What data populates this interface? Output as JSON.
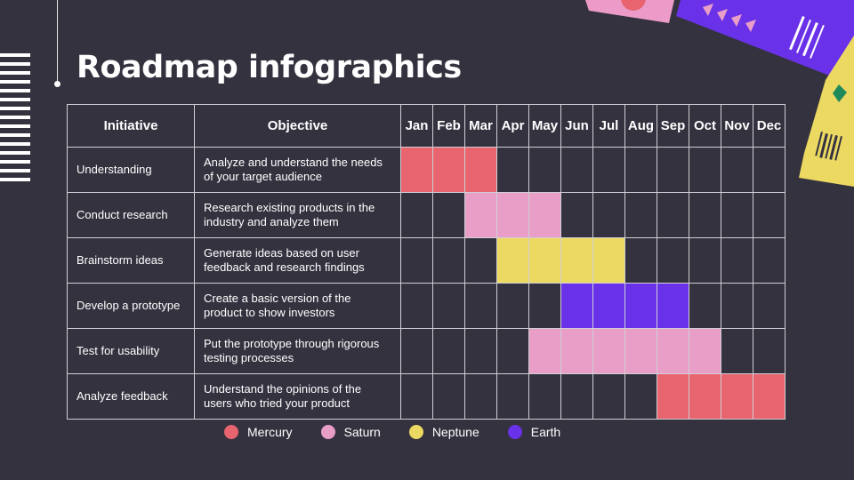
{
  "title": "Roadmap infographics",
  "colors": {
    "background": "#34323f",
    "Mercury": "#e8646f",
    "Saturn": "#e99ec8",
    "Neptune": "#ecd962",
    "Earth": "#6a32e8"
  },
  "headers": {
    "initiative": "Initiative",
    "objective": "Objective",
    "months": [
      "Jan",
      "Feb",
      "Mar",
      "Apr",
      "May",
      "Jun",
      "Jul",
      "Aug",
      "Sep",
      "Oct",
      "Nov",
      "Dec"
    ]
  },
  "rows": [
    {
      "initiative": "Understanding",
      "objective": "Analyze and understand the needs of your target audience",
      "color": "Mercury",
      "start": 0,
      "end": 2
    },
    {
      "initiative": "Conduct research",
      "objective": "Research existing products in the industry and analyze them",
      "color": "Saturn",
      "start": 2,
      "end": 4
    },
    {
      "initiative": "Brainstorm ideas",
      "objective": "Generate ideas based on user feedback and research findings",
      "color": "Neptune",
      "start": 3,
      "end": 6
    },
    {
      "initiative": "Develop a prototype",
      "objective": "Create a basic version of the product to show investors",
      "color": "Earth",
      "start": 5,
      "end": 8
    },
    {
      "initiative": "Test for usability",
      "objective": "Put the prototype through rigorous testing processes",
      "color": "Saturn",
      "start": 4,
      "end": 9
    },
    {
      "initiative": "Analyze feedback",
      "objective": "Understand the opinions of the users who tried your product",
      "color": "Mercury",
      "start": 8,
      "end": 11
    }
  ],
  "legend": [
    {
      "label": "Mercury",
      "color": "#e8646f"
    },
    {
      "label": "Saturn",
      "color": "#e99ec8"
    },
    {
      "label": "Neptune",
      "color": "#ecd962"
    },
    {
      "label": "Earth",
      "color": "#6a32e8"
    }
  ]
}
